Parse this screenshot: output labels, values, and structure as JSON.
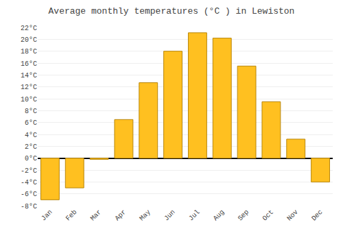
{
  "chart_data": {
    "type": "bar",
    "title": "Average monthly temperatures (°C ) in Lewiston",
    "categories": [
      "Jan",
      "Feb",
      "Mar",
      "Apr",
      "May",
      "Jun",
      "Jul",
      "Aug",
      "Sep",
      "Oct",
      "Nov",
      "Dec"
    ],
    "values": [
      -7.0,
      -5.0,
      -0.2,
      6.5,
      12.7,
      18.0,
      21.1,
      20.2,
      15.5,
      9.5,
      3.2,
      -4.0
    ],
    "color": "#FFC020",
    "ylim": [
      -8,
      22
    ],
    "yticks": [
      {
        "value": -8,
        "label": "-8°C"
      },
      {
        "value": -6,
        "label": "-6°C"
      },
      {
        "value": -4,
        "label": "-4°C"
      },
      {
        "value": -2,
        "label": "-2°C"
      },
      {
        "value": 0,
        "label": "0°C"
      },
      {
        "value": 2,
        "label": "2°C"
      },
      {
        "value": 4,
        "label": "4°C"
      },
      {
        "value": 6,
        "label": "6°C"
      },
      {
        "value": 8,
        "label": "8°C"
      },
      {
        "value": 10,
        "label": "10°C"
      },
      {
        "value": 12,
        "label": "12°C"
      },
      {
        "value": 14,
        "label": "14°C"
      },
      {
        "value": 16,
        "label": "16°C"
      },
      {
        "value": 18,
        "label": "18°C"
      },
      {
        "value": 20,
        "label": "20°C"
      },
      {
        "value": 22,
        "label": "22°C"
      }
    ],
    "grid": true
  }
}
